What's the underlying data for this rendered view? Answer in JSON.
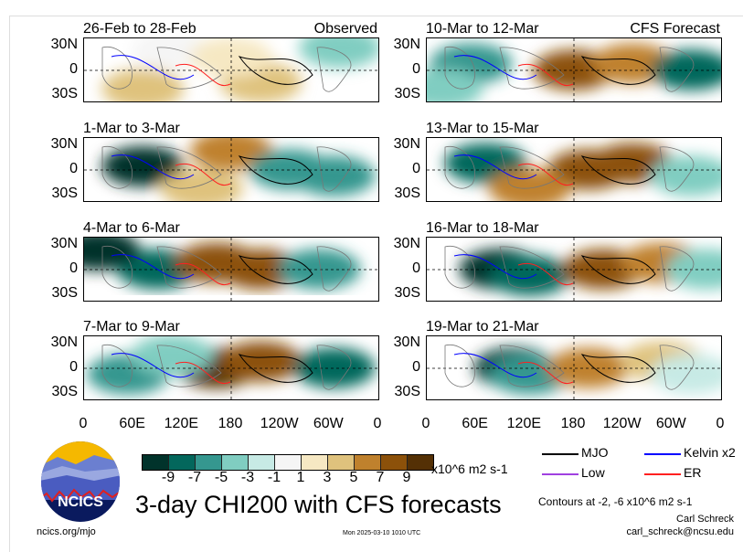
{
  "panels": [
    {
      "title": "26-Feb to 28-Feb",
      "label": "Observed"
    },
    {
      "title": "10-Mar to 12-Mar",
      "label": "CFS Forecast"
    },
    {
      "title": "1-Mar to 3-Mar"
    },
    {
      "title": "13-Mar to 15-Mar"
    },
    {
      "title": "4-Mar to 6-Mar"
    },
    {
      "title": "16-Mar to 18-Mar"
    },
    {
      "title": "7-Mar to 9-Mar"
    },
    {
      "title": "19-Mar to 21-Mar"
    }
  ],
  "lat_labels": [
    "30N",
    "0",
    "30S"
  ],
  "lon_labels": [
    "0",
    "60E",
    "120E",
    "180",
    "120W",
    "60W",
    "0"
  ],
  "colorbar": {
    "colors": [
      "#01332b",
      "#03675c",
      "#35978f",
      "#80cdc1",
      "#c7eae5",
      "#f5f5f5",
      "#f6e8c3",
      "#dfc27d",
      "#bf812d",
      "#8c510a",
      "#543005"
    ],
    "labels": [
      "-9",
      "-7",
      "-5",
      "-3",
      "-1",
      "1",
      "3",
      "5",
      "7",
      "9"
    ],
    "units": "x10^6 m2 s-1"
  },
  "legend": [
    {
      "label": "MJO",
      "color": "#000000"
    },
    {
      "label": "Kelvin x2",
      "color": "#0000ff"
    },
    {
      "label": "Low",
      "color": "#a040e0"
    },
    {
      "label": "ER",
      "color": "#ff2020"
    }
  ],
  "logo_text": "NCICS",
  "main_title": "3-day CHI200 with CFS forecasts",
  "contours_note": "Contours at -2, -6 x10^6 m2 s-1",
  "author": "Carl Schreck",
  "email": "carl_schreck@ncsu.edu",
  "url": "ncics.org/mjo",
  "timestamp": "Mon 2025-03-10 1010 UTC"
}
